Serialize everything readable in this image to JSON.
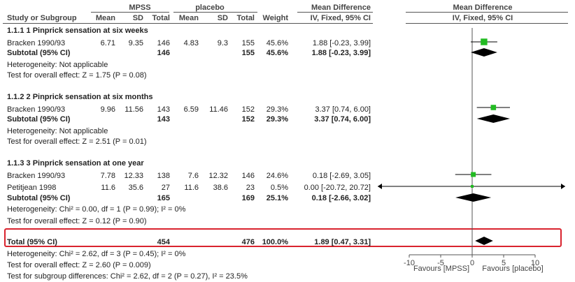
{
  "header": {
    "group1": "MPSS",
    "group2": "placebo",
    "effect_title": "Mean Difference",
    "plot_title": "Mean Difference",
    "study_col": "Study or Subgroup",
    "mean": "Mean",
    "sd": "SD",
    "total": "Total",
    "weight": "Weight",
    "method": "IV, Fixed, 95% CI",
    "plot_method": "IV, Fixed, 95% CI"
  },
  "subgroups": [
    {
      "title": "1.1.1 1 Pinprick sensation at six weeks",
      "studies": [
        {
          "name": "Bracken 1990/93",
          "m1": "6.71",
          "sd1": "9.35",
          "n1": "146",
          "m2": "4.83",
          "sd2": "9.3",
          "n2": "155",
          "weight": "45.6%",
          "ci": "1.88 [-0.23, 3.99]"
        }
      ],
      "subtotal": {
        "label": "Subtotal (95% CI)",
        "n1": "146",
        "n2": "155",
        "weight": "45.6%",
        "ci": "1.88 [-0.23, 3.99]"
      },
      "heterogeneity": "Heterogeneity: Not applicable",
      "overall": "Test for overall effect: Z = 1.75 (P = 0.08)"
    },
    {
      "title": "1.1.2 2 Pinprick sensation at six months",
      "studies": [
        {
          "name": "Bracken 1990/93",
          "m1": "9.96",
          "sd1": "11.56",
          "n1": "143",
          "m2": "6.59",
          "sd2": "11.46",
          "n2": "152",
          "weight": "29.3%",
          "ci": "3.37 [0.74, 6.00]"
        }
      ],
      "subtotal": {
        "label": "Subtotal (95% CI)",
        "n1": "143",
        "n2": "152",
        "weight": "29.3%",
        "ci": "3.37 [0.74, 6.00]"
      },
      "heterogeneity": "Heterogeneity: Not applicable",
      "overall": "Test for overall effect: Z = 2.51 (P = 0.01)"
    },
    {
      "title": "1.1.3 3 Pinprick sensation at one year",
      "studies": [
        {
          "name": "Bracken 1990/93",
          "m1": "7.78",
          "sd1": "12.33",
          "n1": "138",
          "m2": "7.6",
          "sd2": "12.32",
          "n2": "146",
          "weight": "24.6%",
          "ci": "0.18 [-2.69, 3.05]"
        },
        {
          "name": "Petitjean 1998",
          "m1": "11.6",
          "sd1": "35.6",
          "n1": "27",
          "m2": "11.6",
          "sd2": "38.6",
          "n2": "23",
          "weight": "0.5%",
          "ci": "0.00 [-20.72, 20.72]"
        }
      ],
      "subtotal": {
        "label": "Subtotal (95% CI)",
        "n1": "165",
        "n2": "169",
        "weight": "25.1%",
        "ci": "0.18 [-2.66, 3.02]"
      },
      "heterogeneity": "Heterogeneity: Chi² = 0.00, df = 1 (P = 0.99); I² = 0%",
      "overall": "Test for overall effect: Z = 0.12 (P = 0.90)"
    }
  ],
  "total": {
    "label": "Total (95% CI)",
    "n1": "454",
    "n2": "476",
    "weight": "100.0%",
    "ci": "1.89 [0.47, 3.31]"
  },
  "footer": {
    "heterogeneity": "Heterogeneity: Chi² = 2.62, df = 3 (P = 0.45); I² = 0%",
    "overall": "Test for overall effect: Z = 2.60 (P = 0.009)",
    "subgroup": "Test for subgroup differences: Chi² = 2.62, df = 2 (P = 0.27), I² = 23.5%"
  },
  "chart_data": {
    "type": "forest",
    "xlim": [
      -10,
      10
    ],
    "xticks": [
      "-10",
      "-5",
      "0",
      "5",
      "10"
    ],
    "xtick_values": [
      -10,
      -5,
      0,
      5,
      10
    ],
    "favours_left": "Favours [MPSS]",
    "favours_right": "Favours [placebo]",
    "colors": {
      "square": "#22bb22",
      "diamond": "#000000",
      "highlight": "#d9232e"
    },
    "studies": [
      {
        "row": 0,
        "est": 1.88,
        "lo": -0.23,
        "hi": 3.99,
        "weight": 45.6
      },
      {
        "row": 1,
        "est": 3.37,
        "lo": 0.74,
        "hi": 6.0,
        "weight": 29.3
      },
      {
        "row": 2,
        "est": 0.18,
        "lo": -2.69,
        "hi": 3.05,
        "weight": 24.6
      },
      {
        "row": 3,
        "est": 0.0,
        "lo": -20.72,
        "hi": 20.72,
        "weight": 0.5
      }
    ],
    "diamonds": [
      {
        "row": 0,
        "est": 1.88,
        "lo": -0.23,
        "hi": 3.99
      },
      {
        "row": 1,
        "est": 3.37,
        "lo": 0.74,
        "hi": 6.0
      },
      {
        "row": 2,
        "est": 0.18,
        "lo": -2.66,
        "hi": 3.02
      },
      {
        "row": 3,
        "est": 1.89,
        "lo": 0.47,
        "hi": 3.31
      }
    ]
  }
}
